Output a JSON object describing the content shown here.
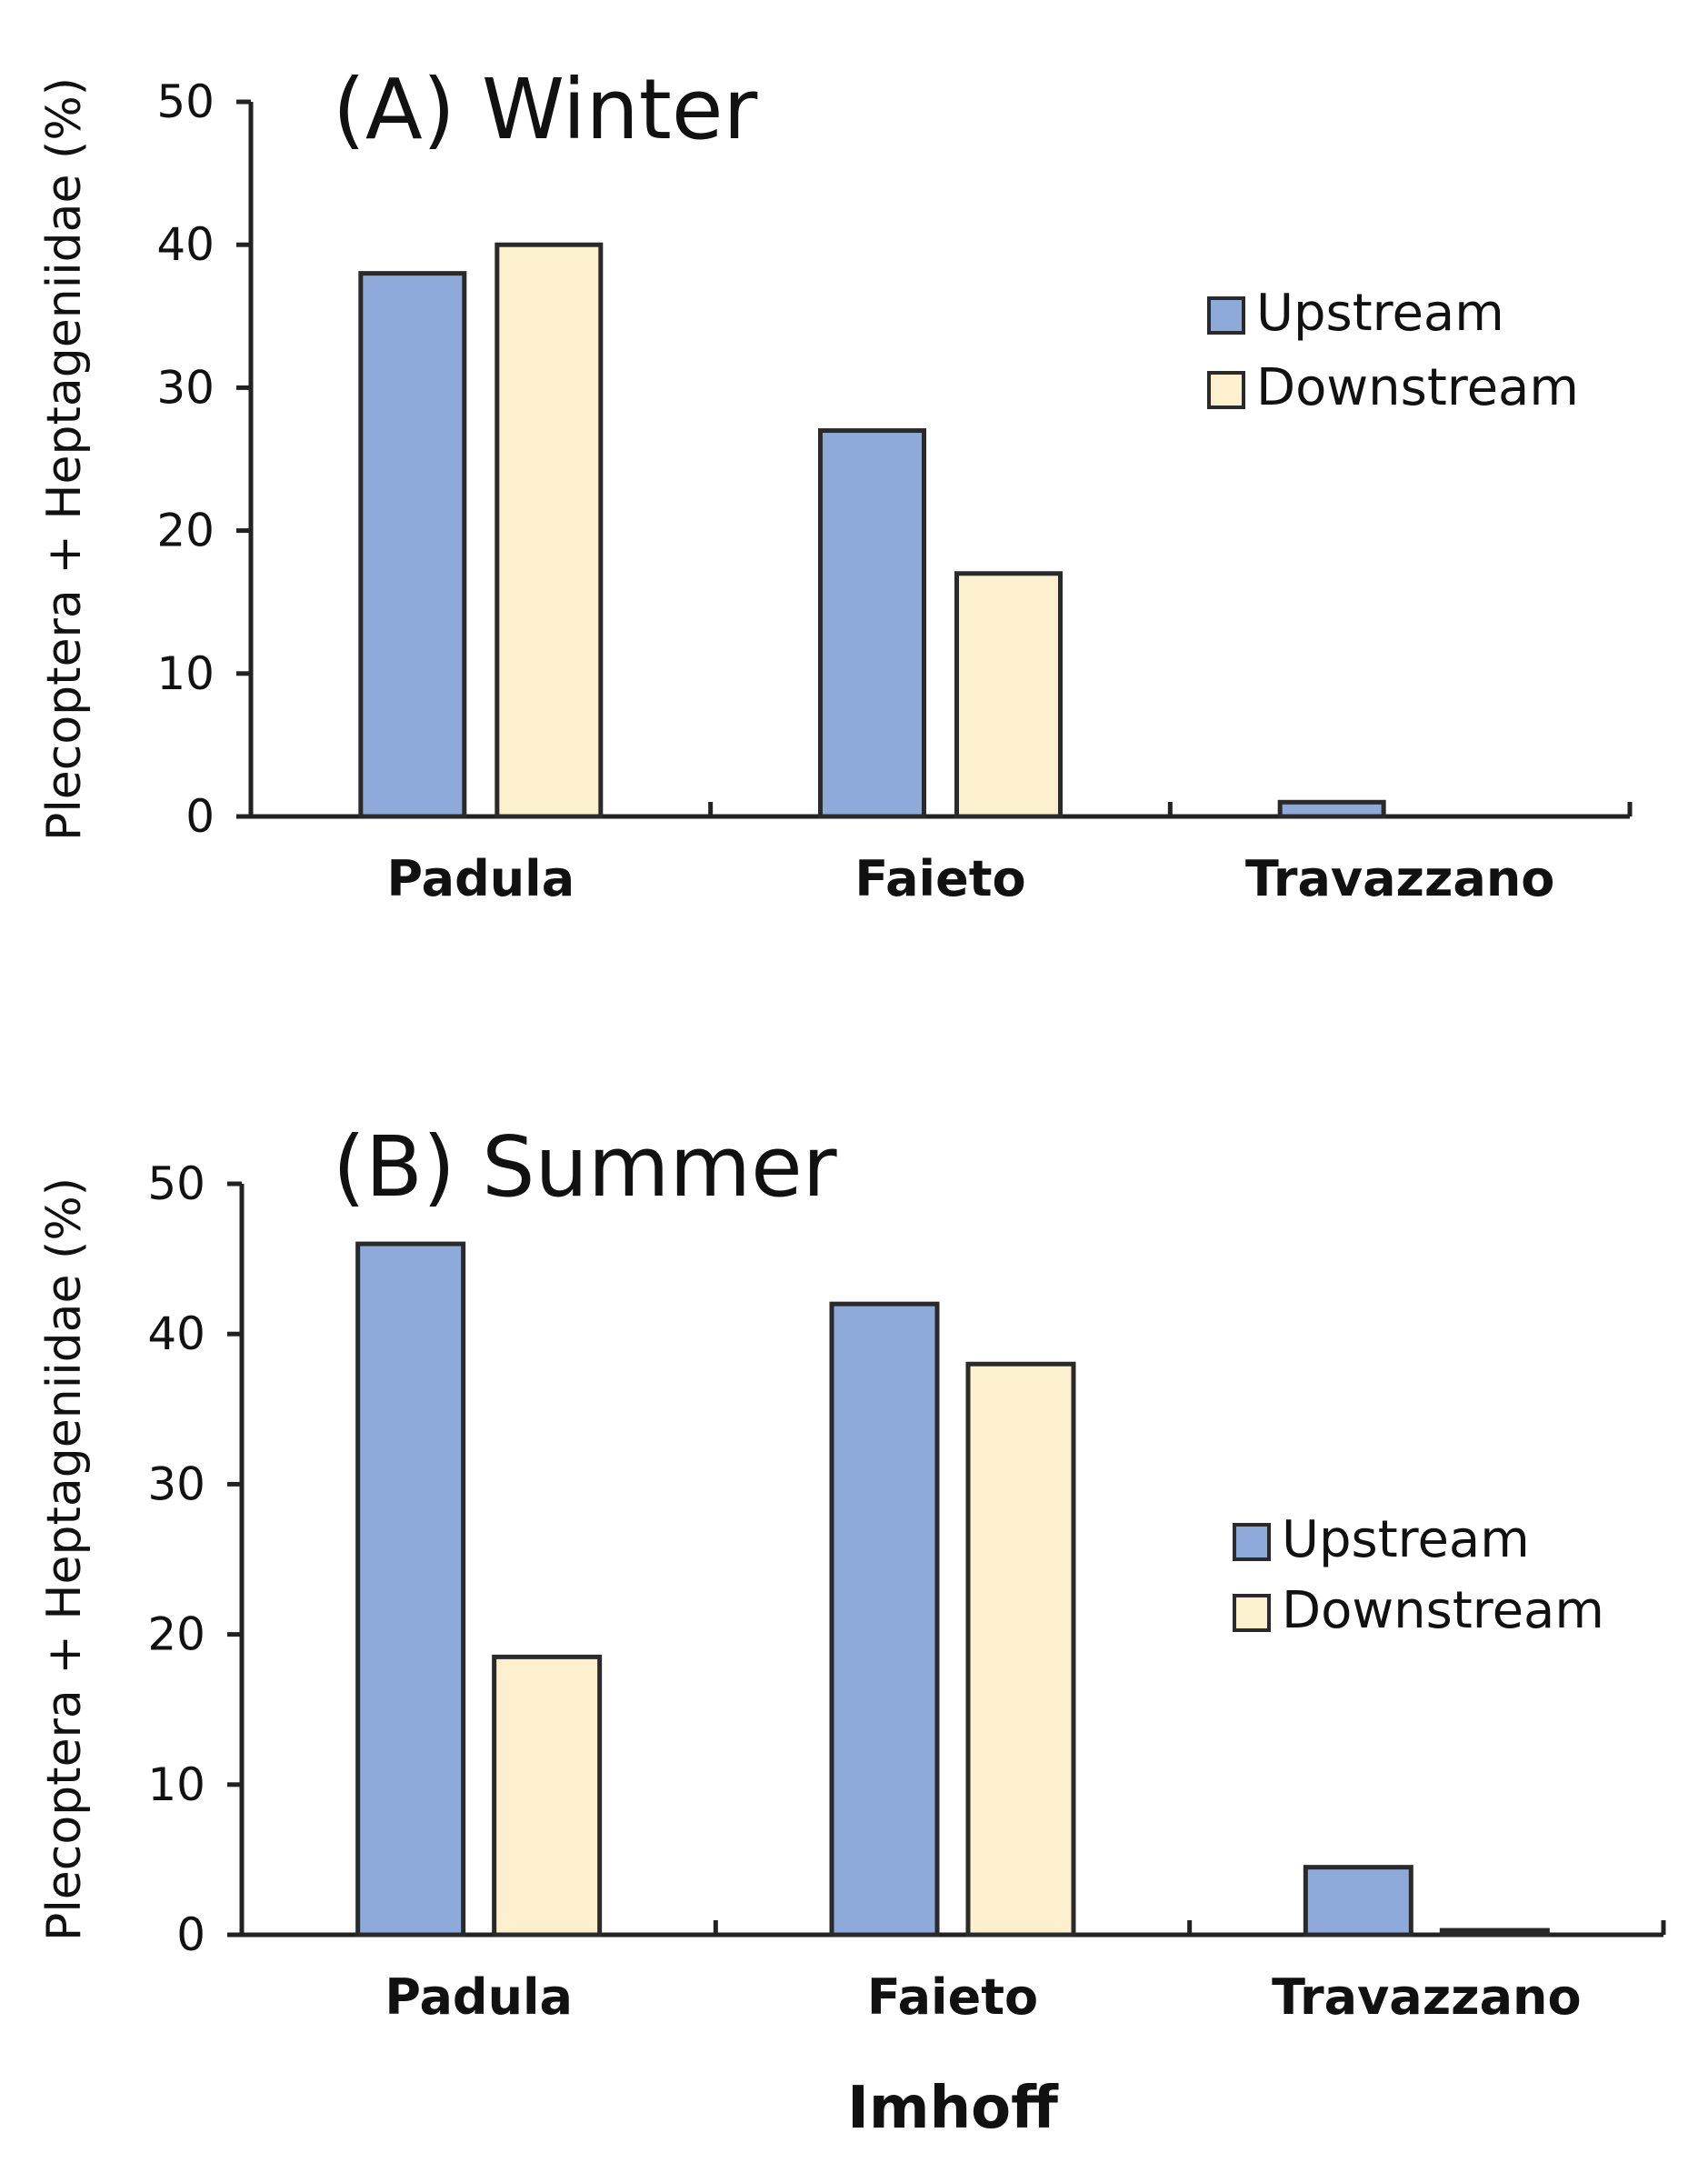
{
  "colors": {
    "upstream": "#8eaadb",
    "downstream": "#fdf0cf",
    "axis": "#222222"
  },
  "chart_data": [
    {
      "type": "bar",
      "title": "(A) Winter",
      "ylabel": "Plecoptera + Heptageniidae (%)",
      "xlabel": "",
      "ylim": [
        0,
        50
      ],
      "yticks": [
        0,
        10,
        20,
        30,
        40,
        50
      ],
      "categories": [
        "Padula",
        "Faieto",
        "Travazzano"
      ],
      "legend": {
        "position": "right",
        "entries": [
          "Upstream",
          "Downstream"
        ]
      },
      "series": [
        {
          "name": "Upstream",
          "values": [
            38,
            27,
            1
          ]
        },
        {
          "name": "Downstream",
          "values": [
            40,
            17,
            0
          ]
        }
      ]
    },
    {
      "type": "bar",
      "title": "(B) Summer",
      "ylabel": "Plecoptera + Heptageniidae (%)",
      "xlabel": "Imhoff",
      "ylim": [
        0,
        50
      ],
      "yticks": [
        0,
        10,
        20,
        30,
        40,
        50
      ],
      "categories": [
        "Padula",
        "Faieto",
        "Travazzano"
      ],
      "legend": {
        "position": "right",
        "entries": [
          "Upstream",
          "Downstream"
        ]
      },
      "series": [
        {
          "name": "Upstream",
          "values": [
            46,
            42,
            4.5
          ]
        },
        {
          "name": "Downstream",
          "values": [
            18.5,
            38,
            0.3
          ]
        }
      ]
    }
  ]
}
